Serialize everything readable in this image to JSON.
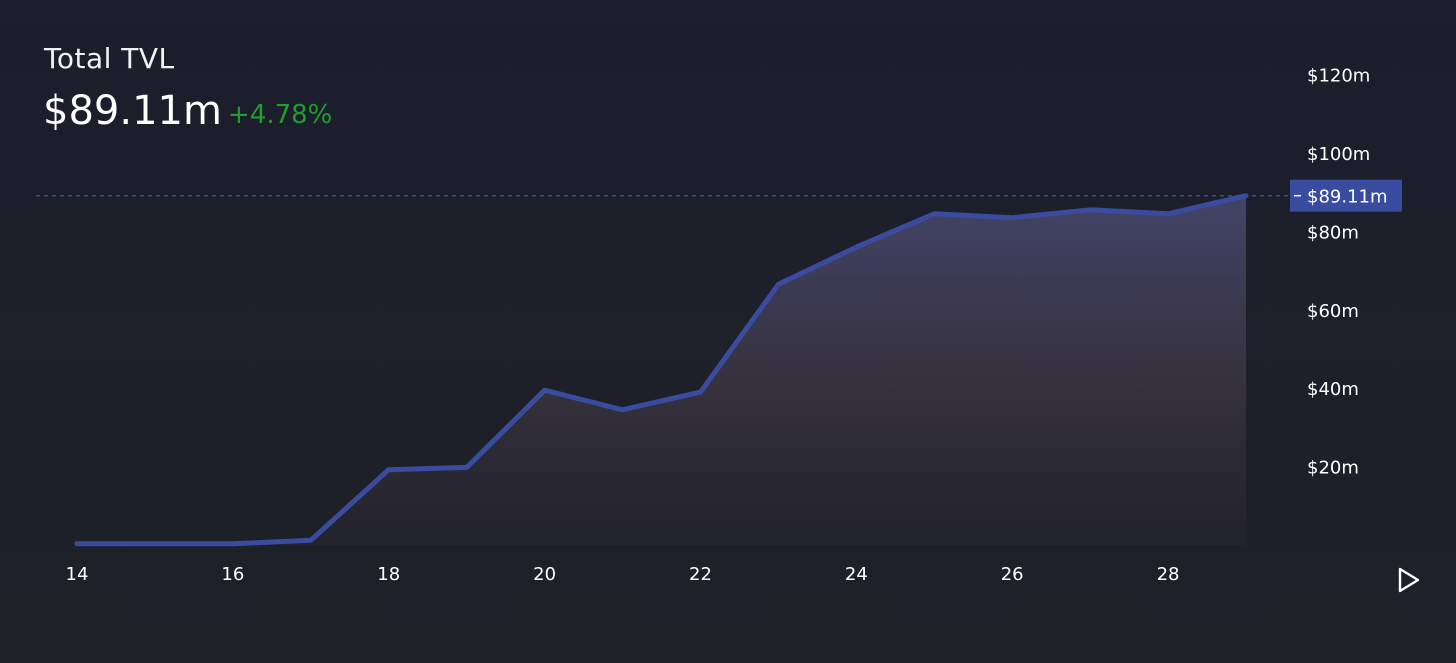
{
  "header": {
    "title": "Total TVL",
    "value": "$89.11m",
    "change": "+4.78%"
  },
  "colors": {
    "line": "#3a4c9f",
    "price_label_bg": "#3a4c9f",
    "change_positive": "#1f9e2e"
  },
  "icons": {
    "play": "play-triangle-icon"
  },
  "chart_data": {
    "type": "area",
    "x": [
      14,
      15,
      16,
      17,
      18,
      19,
      20,
      21,
      22,
      23,
      24,
      25,
      26,
      27,
      28,
      29
    ],
    "values": [
      0.3,
      0.3,
      0.3,
      1.2,
      19.2,
      19.8,
      39.5,
      34.5,
      39.0,
      66.5,
      76.0,
      84.5,
      83.5,
      85.5,
      84.5,
      89.11
    ],
    "x_ticks": [
      "14",
      "16",
      "18",
      "20",
      "22",
      "24",
      "26",
      "28"
    ],
    "x_tick_values": [
      14,
      16,
      18,
      20,
      22,
      24,
      26,
      28
    ],
    "y_ticks": [
      "$20m",
      "$40m",
      "$60m",
      "$80m",
      "$100m",
      "$120m"
    ],
    "y_tick_values": [
      20,
      40,
      60,
      80,
      100,
      120
    ],
    "xlim": [
      14,
      29
    ],
    "ylim": [
      0,
      120
    ],
    "current_value": 89.11,
    "current_label": "$89.11m",
    "grid": false,
    "legend": "none"
  }
}
